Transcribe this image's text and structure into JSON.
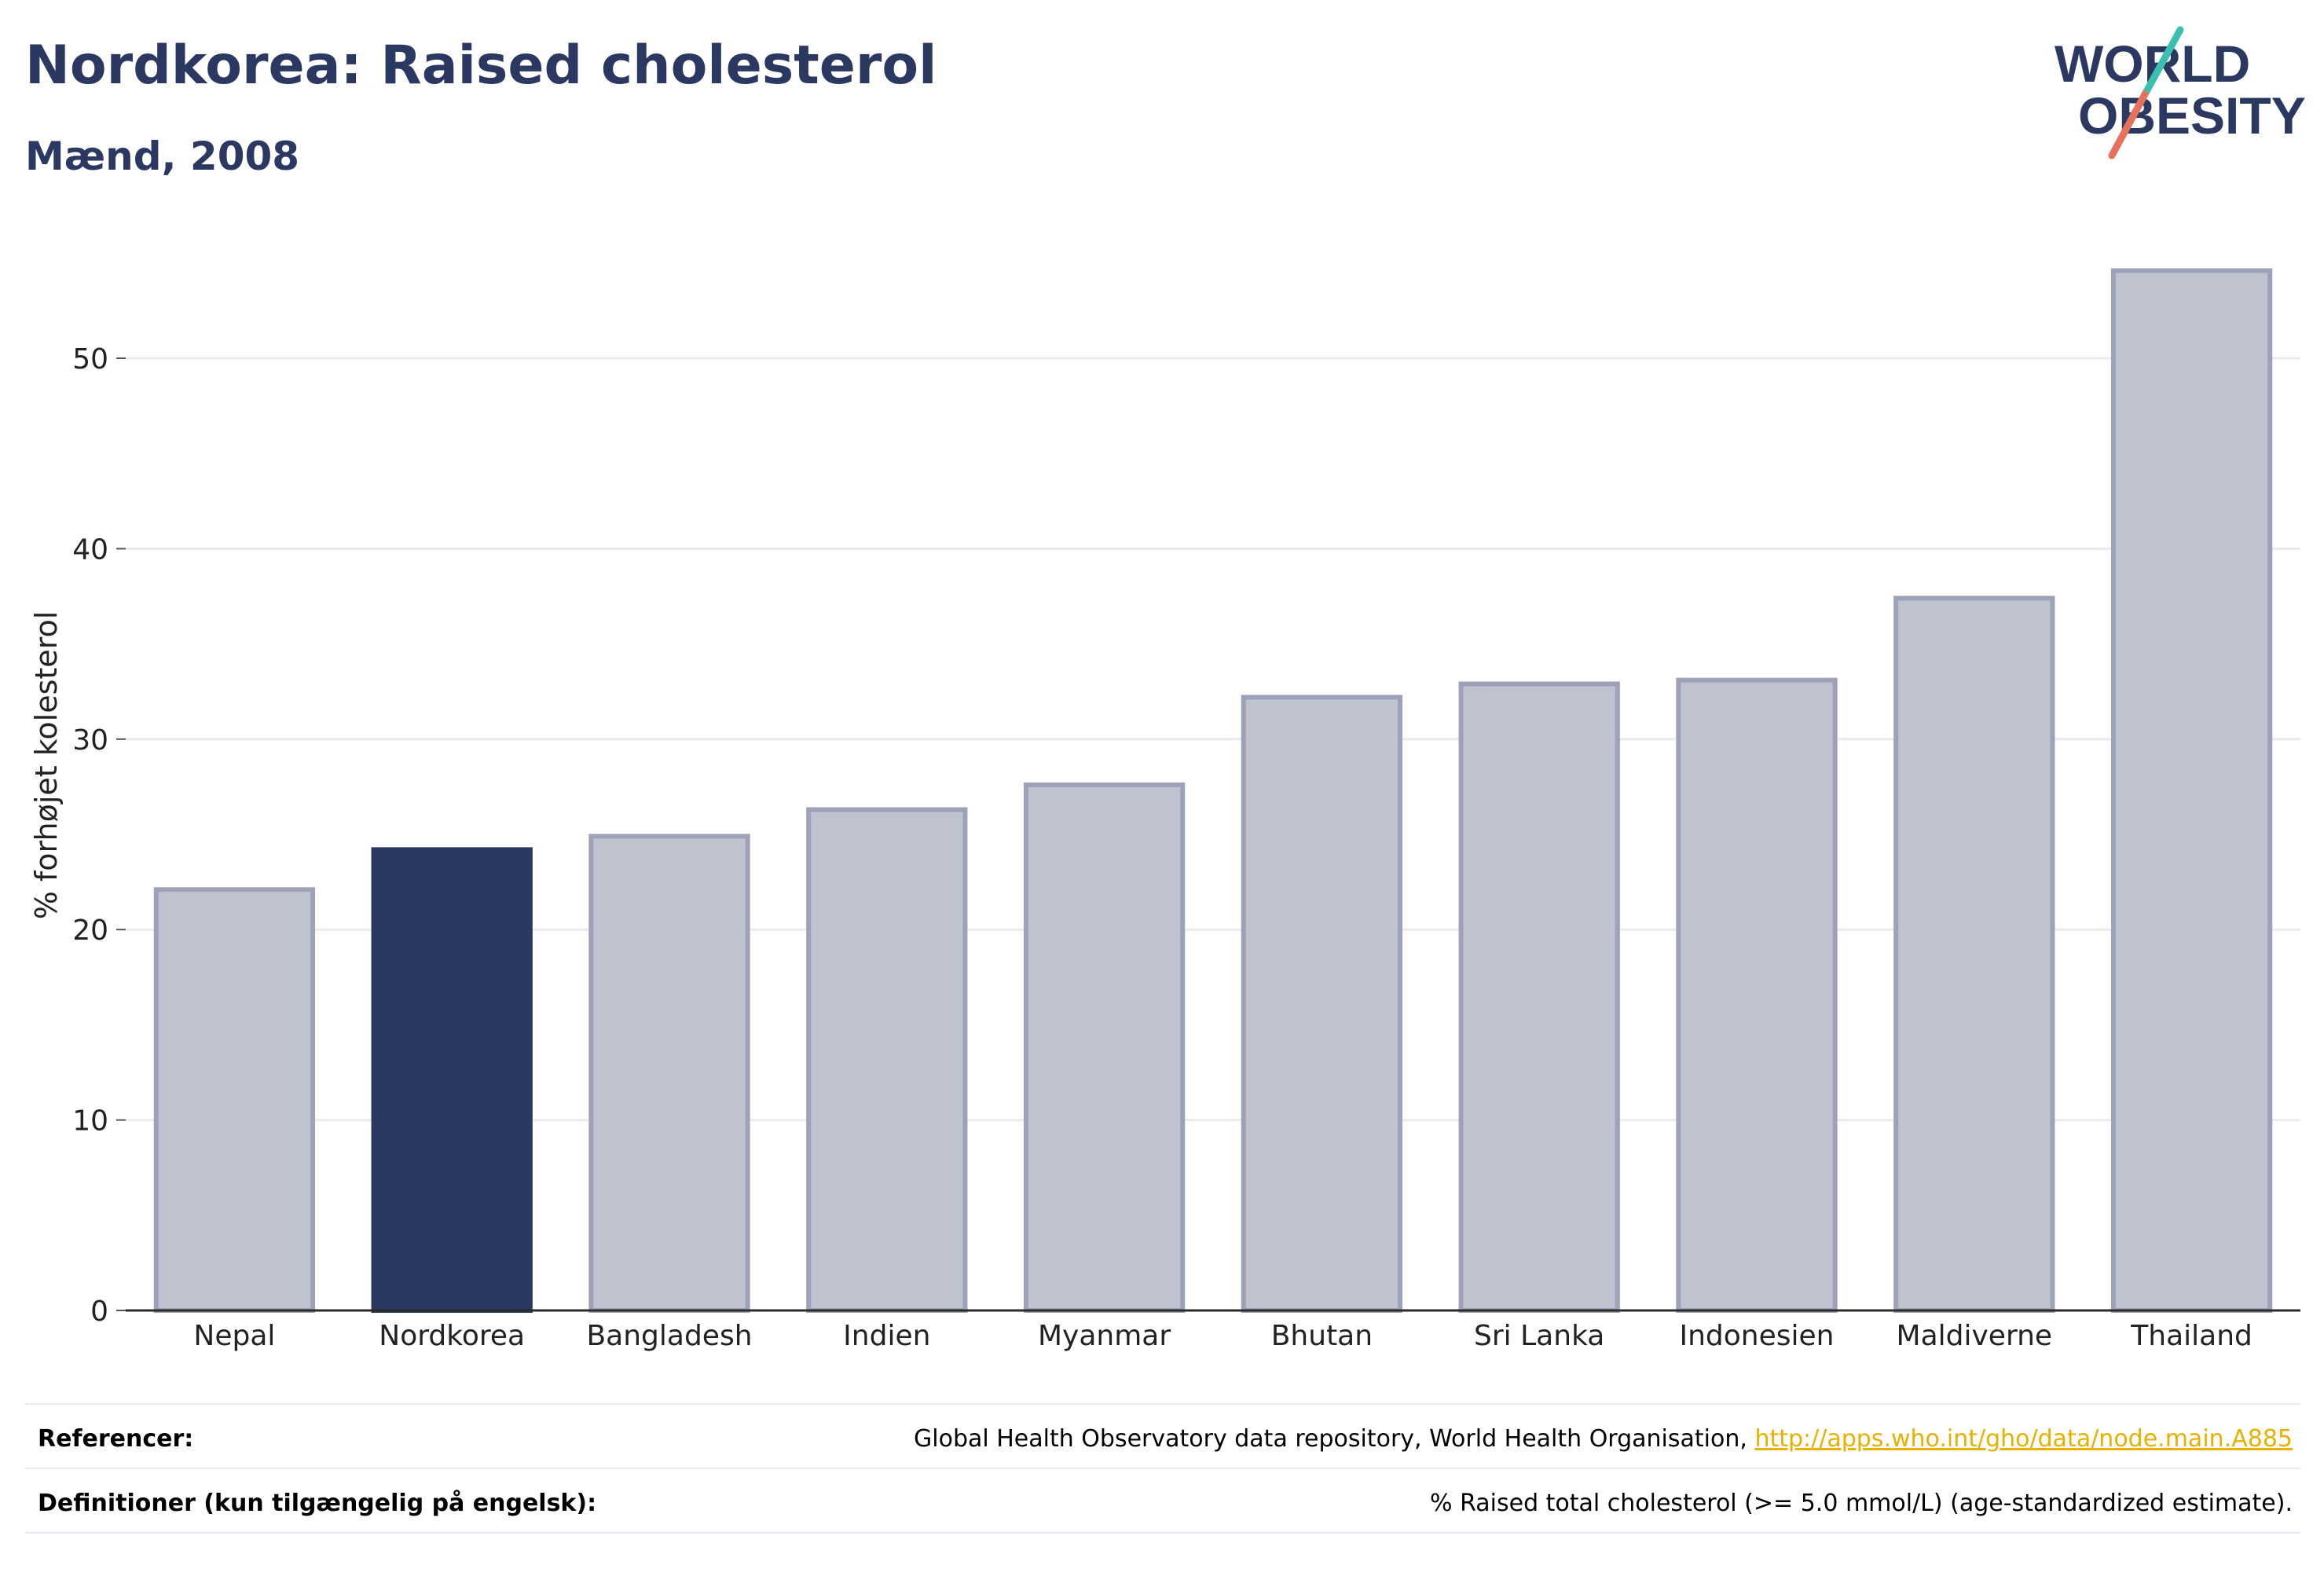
{
  "title": "Nordkorea: Raised cholesterol",
  "subtitle": "Mænd, 2008",
  "logo": {
    "line1": "WORLD",
    "line2": "OBESITY",
    "accent_teal": "#3bbfb0",
    "accent_coral": "#e8715e",
    "text_color": "#2b3862"
  },
  "colors": {
    "highlight": "#2b3862",
    "bar_fill": "#bfc3cf",
    "bar_stroke": "#9da2b8",
    "grid": "#e9ebf0",
    "link": "#e8b100"
  },
  "chart_data": {
    "type": "bar",
    "ylabel": "% forhøjet kolesterol",
    "xlabel": "",
    "ylim": [
      0,
      57
    ],
    "yticks": [
      0,
      10,
      20,
      30,
      40,
      50
    ],
    "grid": true,
    "categories": [
      "Nepal",
      "Nordkorea",
      "Bangladesh",
      "Indien",
      "Myanmar",
      "Bhutan",
      "Sri Lanka",
      "Indonesien",
      "Maldiverne",
      "Thailand"
    ],
    "values": [
      22.1,
      24.2,
      24.9,
      26.3,
      27.6,
      32.2,
      32.9,
      33.1,
      37.4,
      54.6
    ],
    "highlight_category": "Nordkorea"
  },
  "footer": {
    "references_label": "Referencer:",
    "references_text": "Global Health Observatory data repository, World Health Organisation, ",
    "references_link": "http://apps.who.int/gho/data/node.main.A885",
    "definitions_label": "Definitioner (kun tilgængelig på engelsk):",
    "definitions_text": "% Raised total cholesterol (>= 5.0 mmol/L) (age-standardized estimate)."
  }
}
